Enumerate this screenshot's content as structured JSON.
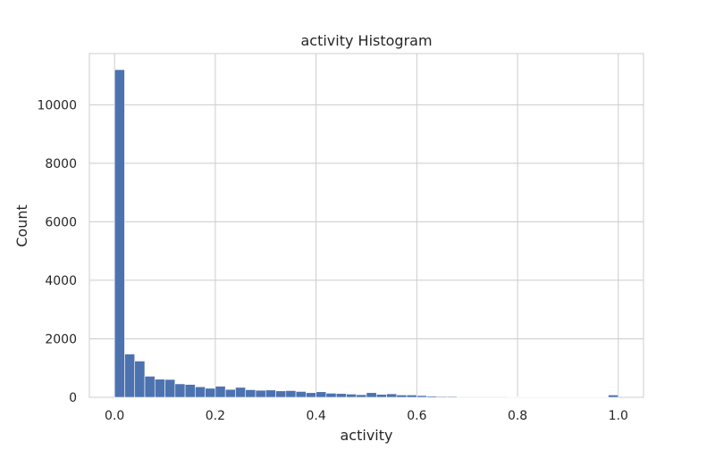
{
  "chart_data": {
    "type": "bar",
    "title": "activity Histogram",
    "xlabel": "activity",
    "ylabel": "Count",
    "xlim": [
      -0.05,
      1.05
    ],
    "ylim": [
      0,
      11750
    ],
    "x_ticks": [
      "0.0",
      "0.2",
      "0.4",
      "0.6",
      "0.8",
      "1.0"
    ],
    "y_ticks": [
      "0",
      "2000",
      "4000",
      "6000",
      "8000",
      "10000"
    ],
    "grid": true,
    "bar_color": "#4c72b0",
    "bins": {
      "start": 0.0,
      "width": 0.02,
      "counts": [
        11200,
        1480,
        1240,
        720,
        620,
        610,
        460,
        440,
        360,
        310,
        380,
        270,
        340,
        260,
        240,
        250,
        220,
        230,
        200,
        160,
        190,
        140,
        130,
        110,
        90,
        160,
        100,
        120,
        80,
        80,
        60,
        40,
        30,
        30,
        20,
        20,
        20,
        20,
        20,
        10,
        10,
        10,
        10,
        10,
        10,
        10,
        10,
        10,
        10,
        80
      ]
    }
  }
}
